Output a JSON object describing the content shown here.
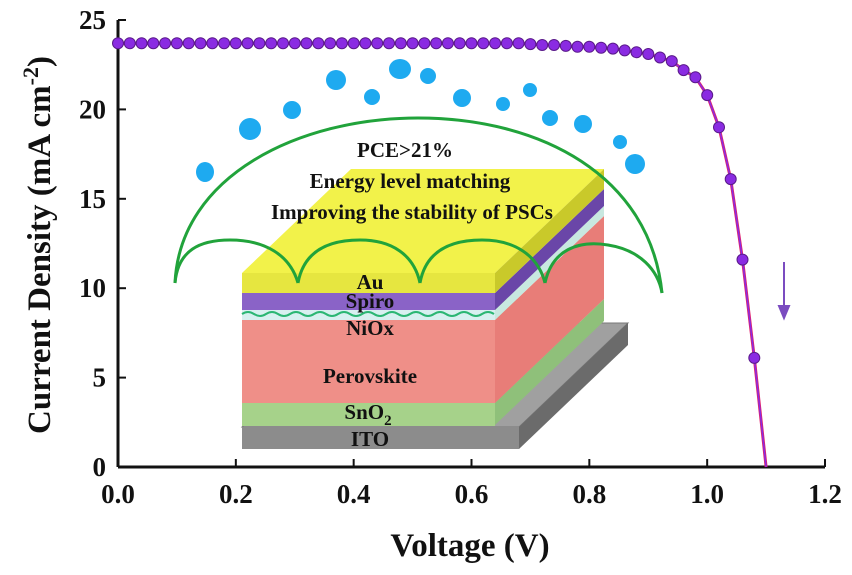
{
  "chart_data": {
    "type": "line",
    "xlabel": "Voltage (V)",
    "ylabel_main": "Current Density (mA cm",
    "ylabel_sup": "-2",
    "ylabel_close": ")",
    "xlim": [
      0.0,
      1.2
    ],
    "ylim": [
      0,
      25
    ],
    "x_ticks": [
      "0.0",
      "0.2",
      "0.4",
      "0.6",
      "0.8",
      "1.0",
      "1.2"
    ],
    "y_ticks": [
      "0",
      "5",
      "10",
      "15",
      "20",
      "25"
    ],
    "grid": false,
    "legend": "none",
    "series": [
      {
        "color": "#e0206a",
        "marker_color": "#8a2be2",
        "x": [
          0.0,
          0.02,
          0.04,
          0.06,
          0.08,
          0.1,
          0.12,
          0.14,
          0.16,
          0.18,
          0.2,
          0.22,
          0.24,
          0.26,
          0.28,
          0.3,
          0.32,
          0.34,
          0.36,
          0.38,
          0.4,
          0.42,
          0.44,
          0.46,
          0.48,
          0.5,
          0.52,
          0.54,
          0.56,
          0.58,
          0.6,
          0.62,
          0.64,
          0.66,
          0.68,
          0.7,
          0.72,
          0.74,
          0.76,
          0.78,
          0.8,
          0.82,
          0.84,
          0.86,
          0.88,
          0.9,
          0.92,
          0.94,
          0.96,
          0.98,
          1.0,
          1.02,
          1.04,
          1.06,
          1.08,
          1.1,
          1.12,
          1.14
        ],
        "y": [
          23.7,
          23.7,
          23.7,
          23.7,
          23.7,
          23.7,
          23.7,
          23.7,
          23.7,
          23.7,
          23.7,
          23.7,
          23.7,
          23.7,
          23.7,
          23.7,
          23.7,
          23.7,
          23.7,
          23.7,
          23.7,
          23.7,
          23.7,
          23.7,
          23.7,
          23.7,
          23.7,
          23.7,
          23.7,
          23.7,
          23.7,
          23.7,
          23.7,
          23.7,
          23.7,
          23.65,
          23.6,
          23.6,
          23.55,
          23.5,
          23.5,
          23.45,
          23.4,
          23.3,
          23.2,
          23.1,
          22.9,
          22.7,
          22.2,
          21.8,
          20.8,
          19.0,
          16.1,
          11.6,
          6.1,
          0.0,
          0.0,
          0.0
        ]
      }
    ],
    "annotations": {
      "line1": "PCE>21%",
      "line2": "Energy level matching",
      "line3": "Improving the stability of PSCs"
    },
    "device_layers": {
      "au": "Au",
      "spiro": "Spiro",
      "niox": "NiOx",
      "perovskite": "Perovskite",
      "sno2_main": "SnO",
      "sno2_sub": "2",
      "ito": "ITO"
    }
  }
}
